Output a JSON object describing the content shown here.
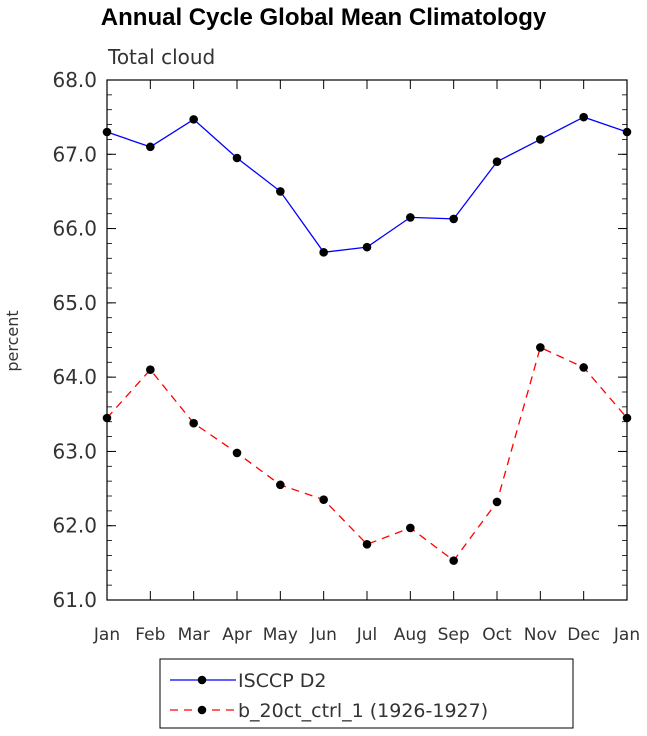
{
  "chart_data": {
    "type": "line",
    "title": "Annual Cycle Global Mean Climatology",
    "subtitle": "Total cloud",
    "ylabel": "percent",
    "xlabel": "",
    "categories": [
      "Jan",
      "Feb",
      "Mar",
      "Apr",
      "May",
      "Jun",
      "Jul",
      "Aug",
      "Sep",
      "Oct",
      "Nov",
      "Dec",
      "Jan"
    ],
    "ylim": [
      61.0,
      68.0
    ],
    "yticks": [
      "61.0",
      "62.0",
      "63.0",
      "64.0",
      "65.0",
      "66.0",
      "67.0",
      "68.0"
    ],
    "grid": false,
    "legend_position": "bottom-center",
    "series": [
      {
        "name": "ISCCP D2",
        "color": "#0000ff",
        "dash": "solid",
        "marker": "circle",
        "values": [
          67.3,
          67.1,
          67.47,
          66.95,
          66.5,
          65.68,
          65.75,
          66.15,
          66.13,
          66.9,
          67.2,
          67.5,
          67.3
        ]
      },
      {
        "name": "b_20ct_ctrl_1 (1926-1927)",
        "color": "#ff0000",
        "dash": "dashed",
        "marker": "circle",
        "values": [
          63.45,
          64.1,
          63.38,
          62.98,
          62.55,
          62.35,
          61.75,
          61.97,
          61.53,
          62.32,
          64.4,
          64.13,
          63.45
        ]
      }
    ]
  }
}
